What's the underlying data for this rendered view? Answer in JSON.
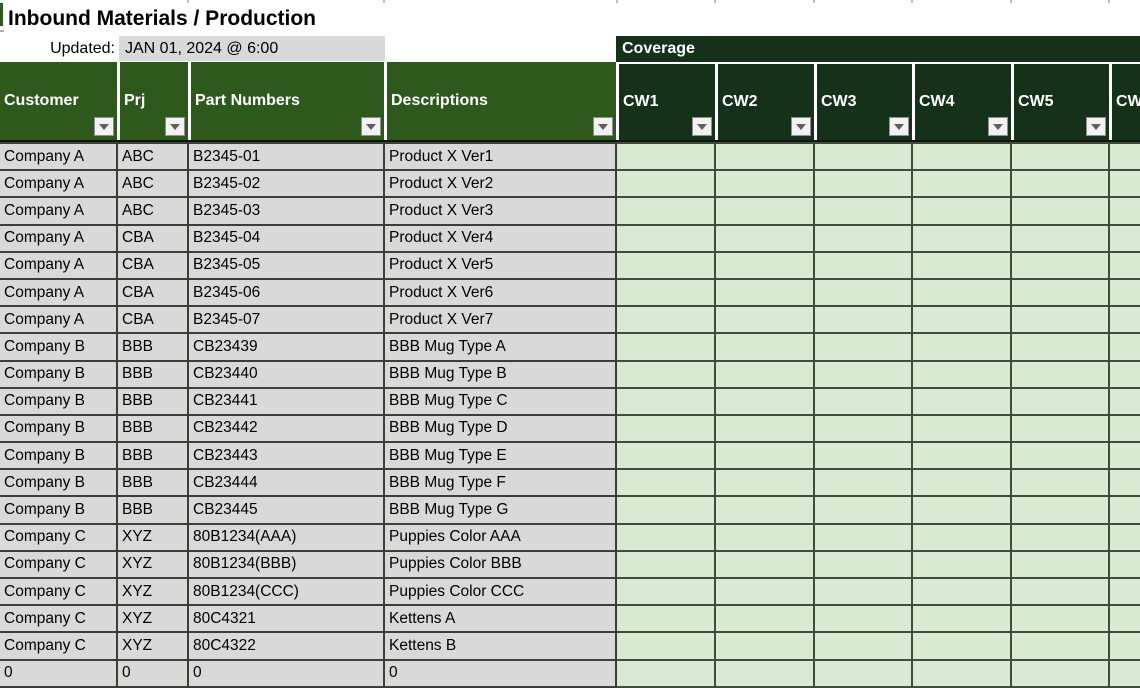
{
  "title": "Inbound Materials / Production",
  "updated": {
    "label": "Updated:",
    "value": "JAN 01, 2024 @ 6:00"
  },
  "coverage": {
    "label": "Coverage"
  },
  "table": {
    "left_columns": [
      {
        "key": "customer",
        "label": "Customer"
      },
      {
        "key": "prj",
        "label": "Prj"
      },
      {
        "key": "part-number",
        "label": "Part Numbers"
      },
      {
        "key": "description",
        "label": "Descriptions"
      }
    ],
    "cw_columns": [
      "CW1",
      "CW2",
      "CW3",
      "CW4",
      "CW5",
      "CW"
    ],
    "cw_values_empty": true,
    "rows": [
      [
        "Company A",
        "ABC",
        "B2345-01",
        "Product X Ver1"
      ],
      [
        "Company A",
        "ABC",
        "B2345-02",
        "Product X Ver2"
      ],
      [
        "Company A",
        "ABC",
        "B2345-03",
        "Product X Ver3"
      ],
      [
        "Company A",
        "CBA",
        "B2345-04",
        "Product X Ver4"
      ],
      [
        "Company A",
        "CBA",
        "B2345-05",
        "Product X Ver5"
      ],
      [
        "Company A",
        "CBA",
        "B2345-06",
        "Product X Ver6"
      ],
      [
        "Company A",
        "CBA",
        "B2345-07",
        "Product X Ver7"
      ],
      [
        "Company B",
        "BBB",
        "CB23439",
        "BBB Mug Type A"
      ],
      [
        "Company B",
        "BBB",
        "CB23440",
        "BBB Mug Type B"
      ],
      [
        "Company B",
        "BBB",
        "CB23441",
        "BBB Mug Type C"
      ],
      [
        "Company B",
        "BBB",
        "CB23442",
        "BBB Mug Type D"
      ],
      [
        "Company B",
        "BBB",
        "CB23443",
        "BBB Mug Type E"
      ],
      [
        "Company B",
        "BBB",
        "CB23444",
        "BBB Mug Type F"
      ],
      [
        "Company B",
        "BBB",
        "CB23445",
        "BBB Mug Type G"
      ],
      [
        "Company C",
        "XYZ",
        "80B1234(AAA)",
        "Puppies Color AAA"
      ],
      [
        "Company C",
        "XYZ",
        "80B1234(BBB)",
        "Puppies Color BBB"
      ],
      [
        "Company C",
        "XYZ",
        "80B1234(CCC)",
        "Puppies Color CCC"
      ],
      [
        "Company C",
        "XYZ",
        "80C4321",
        "Kettens A"
      ],
      [
        "Company C",
        "XYZ",
        "80C4322",
        "Kettens B"
      ],
      [
        "0",
        "0",
        "0",
        "0"
      ]
    ]
  },
  "icons": {
    "filter_dropdown": "triangle-down"
  },
  "colors": {
    "header_green": "#2D591C",
    "coverage_green": "#15311A",
    "cell_gray": "#D9D9D9",
    "cell_green": "#D9EAD3",
    "grid_border": "#3A3E35",
    "header_text": "#FFFFFF",
    "body_text": "#000000"
  }
}
